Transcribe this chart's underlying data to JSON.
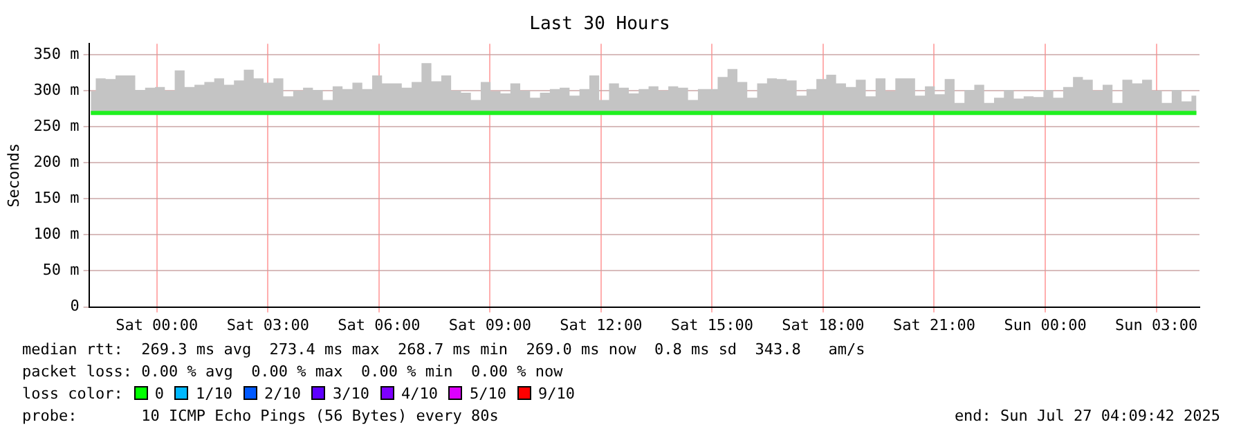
{
  "chart_data": {
    "type": "line",
    "title": "Last 30 Hours",
    "ylabel": "Seconds",
    "x": [
      "2025-07-25T22:13",
      "2025-07-25T22:29",
      "2025-07-25T22:45",
      "2025-07-25T23:01",
      "2025-07-25T23:17",
      "2025-07-25T23:33",
      "2025-07-25T23:49",
      "2025-07-26T00:05",
      "2025-07-26T00:21",
      "2025-07-26T00:37",
      "2025-07-26T00:53",
      "2025-07-26T01:09",
      "2025-07-26T01:25",
      "2025-07-26T01:41",
      "2025-07-26T01:57",
      "2025-07-26T02:13",
      "2025-07-26T02:29",
      "2025-07-26T02:45",
      "2025-07-26T03:01",
      "2025-07-26T03:17",
      "2025-07-26T03:33",
      "2025-07-26T03:49",
      "2025-07-26T04:05",
      "2025-07-26T04:21",
      "2025-07-26T04:37",
      "2025-07-26T04:53",
      "2025-07-26T05:09",
      "2025-07-26T05:25",
      "2025-07-26T05:41",
      "2025-07-26T05:57",
      "2025-07-26T06:13",
      "2025-07-26T06:29",
      "2025-07-26T06:45",
      "2025-07-26T07:01",
      "2025-07-26T07:17",
      "2025-07-26T07:33",
      "2025-07-26T07:49",
      "2025-07-26T08:05",
      "2025-07-26T08:21",
      "2025-07-26T08:37",
      "2025-07-26T08:53",
      "2025-07-26T09:09",
      "2025-07-26T09:25",
      "2025-07-26T09:41",
      "2025-07-26T09:57",
      "2025-07-26T10:13",
      "2025-07-26T10:29",
      "2025-07-26T10:45",
      "2025-07-26T11:01",
      "2025-07-26T11:17",
      "2025-07-26T11:33",
      "2025-07-26T11:49",
      "2025-07-26T12:05",
      "2025-07-26T12:21",
      "2025-07-26T12:37",
      "2025-07-26T12:53",
      "2025-07-26T13:09",
      "2025-07-26T13:25",
      "2025-07-26T13:41",
      "2025-07-26T13:57",
      "2025-07-26T14:13",
      "2025-07-26T14:29",
      "2025-07-26T14:45",
      "2025-07-26T15:01",
      "2025-07-26T15:17",
      "2025-07-26T15:33",
      "2025-07-26T15:49",
      "2025-07-26T16:05",
      "2025-07-26T16:21",
      "2025-07-26T16:37",
      "2025-07-26T16:53",
      "2025-07-26T17:09",
      "2025-07-26T17:25",
      "2025-07-26T17:41",
      "2025-07-26T17:57",
      "2025-07-26T18:13",
      "2025-07-26T18:29",
      "2025-07-26T18:45",
      "2025-07-26T19:01",
      "2025-07-26T19:17",
      "2025-07-26T19:33",
      "2025-07-26T19:49",
      "2025-07-26T20:05",
      "2025-07-26T20:21",
      "2025-07-26T20:37",
      "2025-07-26T20:53",
      "2025-07-26T21:09",
      "2025-07-26T21:25",
      "2025-07-26T21:41",
      "2025-07-26T21:57",
      "2025-07-26T22:13",
      "2025-07-26T22:29",
      "2025-07-26T22:45",
      "2025-07-26T23:01",
      "2025-07-26T23:17",
      "2025-07-26T23:33",
      "2025-07-26T23:49",
      "2025-07-27T00:05",
      "2025-07-27T00:21",
      "2025-07-27T00:37",
      "2025-07-27T00:53",
      "2025-07-27T01:09",
      "2025-07-27T01:25",
      "2025-07-27T01:41",
      "2025-07-27T01:57",
      "2025-07-27T02:13",
      "2025-07-27T02:29",
      "2025-07-27T02:45",
      "2025-07-27T03:01",
      "2025-07-27T03:17",
      "2025-07-27T03:33",
      "2025-07-27T03:49",
      "2025-07-27T04:05"
    ],
    "series": [
      {
        "color": "#20f020",
        "lower": [
          268,
          268,
          268,
          268,
          268,
          268,
          268,
          268,
          268,
          268,
          268,
          268,
          268,
          268,
          268,
          268,
          268,
          268,
          268,
          268,
          268,
          268,
          268,
          268,
          268,
          268,
          268,
          268,
          268,
          268,
          268,
          268,
          268,
          268,
          268,
          268,
          268,
          268,
          268,
          268,
          268,
          268,
          268,
          268,
          268,
          268,
          268,
          268,
          268,
          268,
          268,
          268,
          268,
          268,
          268,
          268,
          268,
          268,
          268,
          268,
          268,
          268,
          268,
          268,
          268,
          268,
          268,
          268,
          268,
          268,
          268,
          268,
          268,
          268,
          268,
          268,
          268,
          268,
          268,
          268,
          268,
          268,
          268,
          268,
          268,
          268,
          268,
          268,
          268,
          268,
          268,
          268,
          268,
          268,
          268,
          268,
          268,
          268,
          268,
          268,
          268,
          268,
          268,
          268,
          268,
          268,
          268,
          268,
          268,
          268,
          268,
          268,
          268
        ],
        "upper": [
          299,
          317,
          316,
          321,
          321,
          301,
          304,
          305,
          300,
          328,
          305,
          308,
          312,
          317,
          308,
          314,
          329,
          317,
          311,
          317,
          292,
          300,
          304,
          301,
          287,
          306,
          302,
          311,
          302,
          321,
          310,
          310,
          304,
          312,
          338,
          313,
          321,
          300,
          297,
          287,
          312,
          299,
          296,
          310,
          300,
          290,
          297,
          302,
          304,
          293,
          302,
          321,
          287,
          310,
          304,
          296,
          302,
          306,
          300,
          306,
          304,
          287,
          302,
          302,
          319,
          330,
          312,
          290,
          310,
          317,
          316,
          314,
          293,
          302,
          316,
          322,
          310,
          305,
          315,
          292,
          317,
          299,
          317,
          317,
          293,
          306,
          295,
          316,
          283,
          301,
          308,
          283,
          290,
          301,
          289,
          292,
          291,
          301,
          290,
          305,
          319,
          315,
          300,
          308,
          283,
          315,
          310,
          315,
          300,
          283,
          301,
          285,
          293
        ],
        "values": [
          269,
          269,
          269,
          269,
          269,
          269,
          269,
          269,
          269,
          269,
          269,
          269,
          269,
          269,
          269,
          269,
          269,
          269,
          269,
          269,
          269,
          269,
          269,
          269,
          269,
          269,
          269,
          269,
          269,
          269,
          269,
          269,
          269,
          269,
          269,
          269,
          269,
          269,
          269,
          269,
          269,
          269,
          269,
          269,
          269,
          269,
          269,
          269,
          269,
          269,
          269,
          269,
          269,
          269,
          269,
          269,
          269,
          269,
          269,
          269,
          269,
          269,
          269,
          269,
          269,
          269,
          269,
          269,
          269,
          269,
          269,
          269,
          269,
          269,
          269,
          269,
          269,
          269,
          269,
          269,
          269,
          269,
          269,
          269,
          269,
          269,
          269,
          269,
          269,
          269,
          269,
          269,
          269,
          269,
          269,
          269,
          269,
          269,
          269,
          269,
          269,
          269,
          269,
          269,
          269,
          269,
          269,
          269,
          269,
          269,
          269,
          269,
          269
        ]
      }
    ],
    "xlim": [
      "2025-07-25T22:10",
      "2025-07-27T04:10"
    ],
    "xticks": [
      {
        "value": "2025-07-26T00:00",
        "label": "Sat 00:00"
      },
      {
        "value": "2025-07-26T03:00",
        "label": "Sat 03:00"
      },
      {
        "value": "2025-07-26T06:00",
        "label": "Sat 06:00"
      },
      {
        "value": "2025-07-26T09:00",
        "label": "Sat 09:00"
      },
      {
        "value": "2025-07-26T12:00",
        "label": "Sat 12:00"
      },
      {
        "value": "2025-07-26T15:00",
        "label": "Sat 15:00"
      },
      {
        "value": "2025-07-26T18:00",
        "label": "Sat 18:00"
      },
      {
        "value": "2025-07-26T21:00",
        "label": "Sat 21:00"
      },
      {
        "value": "2025-07-27T00:00",
        "label": "Sun 00:00"
      },
      {
        "value": "2025-07-27T03:00",
        "label": "Sun 03:00"
      }
    ],
    "ylim": [
      0,
      365
    ],
    "yticks": [
      0,
      {
        "value": 50,
        "label": "50 m"
      },
      {
        "value": 100,
        "label": "100 m"
      },
      {
        "value": 150,
        "label": "150 m"
      },
      {
        "value": 200,
        "label": "200 m"
      },
      {
        "value": 250,
        "label": "250 m"
      },
      {
        "value": 300,
        "label": "300 m"
      },
      {
        "value": 350,
        "label": "350 m"
      }
    ],
    "grid": true,
    "legend": false,
    "marker": "none",
    "line_style": "solid",
    "annotations": [
      "median rtt:  269.3 ms avg  273.4 ms max  268.7 ms min  269.0 ms now  0.8 ms sd  343.8   am/s",
      "packet loss: 0.00 % avg  0.00 % max  0.00 % min  0.00 % now",
      "loss color:",
      "0",
      "1/10",
      "2/10",
      "3/10",
      "4/10",
      "5/10",
      "9/10",
      "probe:       10 ICMP Echo Pings (56 Bytes) every 80s",
      "end: Sun Jul 27 04:09:42 2025"
    ]
  }
}
